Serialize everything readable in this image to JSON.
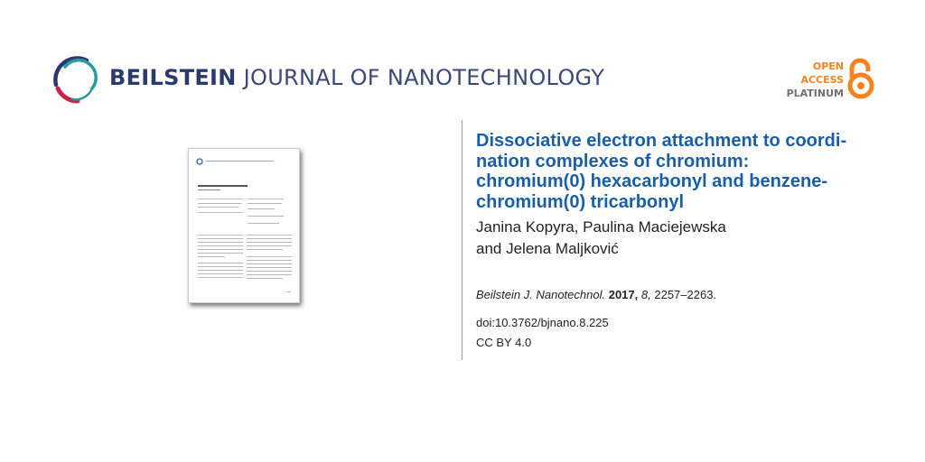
{
  "header": {
    "journal_name_bold": "BEILSTEIN",
    "journal_name_rest": "JOURNAL OF NANOTECHNOLOGY",
    "open_access": {
      "line1": "OPEN",
      "line2": "ACCESS",
      "line3": "PLATINUM"
    },
    "colors": {
      "brand_blue": "#2a3a6e",
      "logo_red": "#c8234a",
      "logo_teal": "#2a9a9a",
      "oa_orange": "#f58220"
    }
  },
  "article": {
    "title_lines": [
      "Dissociative electron attachment to coordi-",
      "nation complexes of chromium:",
      "chromium(0) hexacarbonyl and benzene-",
      "chromium(0) tricarbonyl"
    ],
    "authors_lines": [
      "Janina Kopyra, Paulina Maciejewska",
      "and Jelena Maljković"
    ],
    "citation": {
      "journal": "Beilstein J. Nanotechnol.",
      "year": "2017,",
      "volume": "8,",
      "pages": "2257–2263."
    },
    "doi": "doi:10.3762/bjnano.8.225",
    "license": "CC BY 4.0",
    "title_color": "#1a5ea8"
  }
}
